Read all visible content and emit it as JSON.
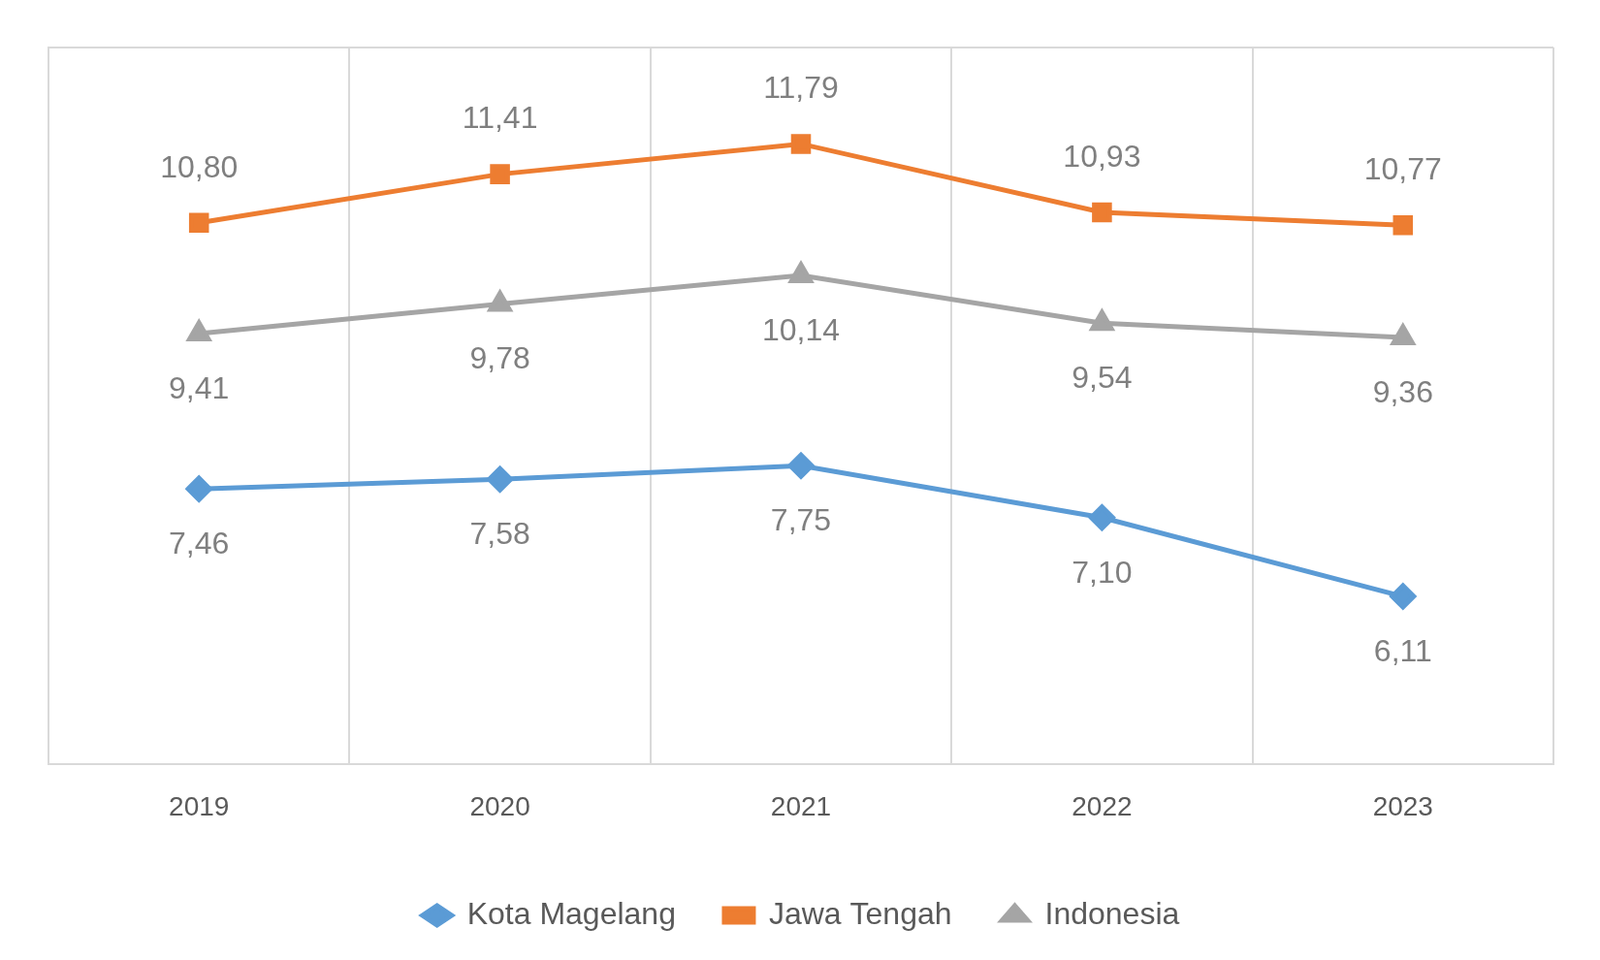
{
  "chart_data": {
    "type": "line",
    "categories": [
      "2019",
      "2020",
      "2021",
      "2022",
      "2023"
    ],
    "series": [
      {
        "name": "Kota Magelang",
        "color": "#5B9BD5",
        "marker": "diamond",
        "line_style": "solid",
        "values": [
          7.46,
          7.58,
          7.75,
          7.1,
          6.11
        ],
        "value_labels": [
          "7,46",
          "7,58",
          "7,75",
          "7,10",
          "6,11"
        ]
      },
      {
        "name": "Jawa Tengah",
        "color": "#ED7D31",
        "marker": "square",
        "line_style": "solid",
        "values": [
          10.8,
          11.41,
          11.79,
          10.93,
          10.77
        ],
        "value_labels": [
          "10,80",
          "11,41",
          "11,79",
          "10,93",
          "10,77"
        ]
      },
      {
        "name": "Indonesia",
        "color": "#A5A5A5",
        "marker": "triangle",
        "line_style": "solid",
        "values": [
          9.41,
          9.78,
          10.14,
          9.54,
          9.36
        ],
        "value_labels": [
          "9,41",
          "9,78",
          "10,14",
          "9,54",
          "9,36"
        ]
      }
    ],
    "ylim": [
      4,
      13
    ],
    "yticks": [
      4,
      13
    ],
    "grid": true,
    "legend": "bottom",
    "data_labels": true,
    "tick_labels": "x"
  }
}
